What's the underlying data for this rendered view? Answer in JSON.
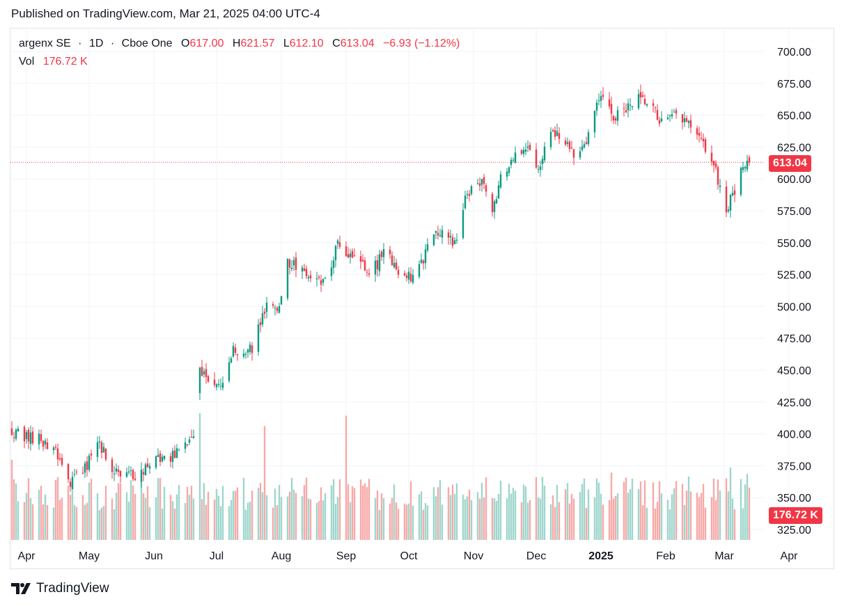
{
  "published": "Published on TradingView.com, Mar 21, 2025 04:00 UTC-4",
  "legend": {
    "symbol": "argenx SE",
    "interval": "1D",
    "exchange": "Cboe One",
    "o_label": "O",
    "o_value": "617.00",
    "h_label": "H",
    "h_value": "621.57",
    "l_label": "L",
    "l_value": "612.10",
    "c_label": "C",
    "c_value": "613.04",
    "change": "−6.93 (−1.12%)",
    "vol_label": "Vol",
    "vol_value": "176.72 K"
  },
  "price_tag": "613.04",
  "volume_tag": "176.72 K",
  "brand": "TradingView",
  "colors": {
    "up": "#089981",
    "down": "#f23645",
    "up_vol": "#9fd6cc",
    "down_vol": "#f7a9a7",
    "grid": "#f0f3fa",
    "text": "#131722"
  },
  "chart_data": {
    "type": "candlestick",
    "ylim": [
      320,
      710
    ],
    "y_ticks": [
      "700.00",
      "675.00",
      "650.00",
      "625.00",
      "600.00",
      "575.00",
      "550.00",
      "525.00",
      "500.00",
      "475.00",
      "450.00",
      "425.00",
      "400.00",
      "375.00",
      "350.00",
      "325.00"
    ],
    "y_tick_values": [
      700,
      675,
      650,
      625,
      600,
      575,
      550,
      525,
      500,
      475,
      450,
      425,
      400,
      375,
      350,
      325
    ],
    "x_ticks": [
      {
        "label": "Apr",
        "day": 7
      },
      {
        "label": "May",
        "day": 37
      },
      {
        "label": "Jun",
        "day": 68
      },
      {
        "label": "Jul",
        "day": 98
      },
      {
        "label": "Aug",
        "day": 129
      },
      {
        "label": "Sep",
        "day": 160
      },
      {
        "label": "Oct",
        "day": 190
      },
      {
        "label": "Nov",
        "day": 221
      },
      {
        "label": "Dec",
        "day": 251
      },
      {
        "label": "2025",
        "day": 282,
        "bold": true
      },
      {
        "label": "Feb",
        "day": 313
      },
      {
        "label": "Mar",
        "day": 341
      },
      {
        "label": "Apr",
        "day": 372
      }
    ],
    "last_close": 613.04,
    "anchors": [
      {
        "day": 0,
        "price": 403
      },
      {
        "day": 4,
        "price": 398
      },
      {
        "day": 12,
        "price": 396
      },
      {
        "day": 20,
        "price": 390
      },
      {
        "day": 28,
        "price": 363
      },
      {
        "day": 35,
        "price": 374
      },
      {
        "day": 42,
        "price": 392
      },
      {
        "day": 48,
        "price": 372
      },
      {
        "day": 55,
        "price": 366
      },
      {
        "day": 62,
        "price": 370
      },
      {
        "day": 70,
        "price": 380
      },
      {
        "day": 78,
        "price": 384
      },
      {
        "day": 88,
        "price": 397
      },
      {
        "day": 90,
        "price": 452
      },
      {
        "day": 96,
        "price": 436
      },
      {
        "day": 102,
        "price": 440
      },
      {
        "day": 106,
        "price": 464
      },
      {
        "day": 115,
        "price": 466
      },
      {
        "day": 122,
        "price": 504
      },
      {
        "day": 128,
        "price": 500
      },
      {
        "day": 132,
        "price": 536
      },
      {
        "day": 140,
        "price": 528
      },
      {
        "day": 146,
        "price": 522
      },
      {
        "day": 150,
        "price": 518
      },
      {
        "day": 156,
        "price": 548
      },
      {
        "day": 164,
        "price": 536
      },
      {
        "day": 172,
        "price": 526
      },
      {
        "day": 178,
        "price": 542
      },
      {
        "day": 186,
        "price": 528
      },
      {
        "day": 192,
        "price": 520
      },
      {
        "day": 198,
        "price": 542
      },
      {
        "day": 204,
        "price": 560
      },
      {
        "day": 212,
        "price": 550
      },
      {
        "day": 216,
        "price": 578
      },
      {
        "day": 220,
        "price": 596
      },
      {
        "day": 226,
        "price": 598
      },
      {
        "day": 230,
        "price": 570
      },
      {
        "day": 234,
        "price": 600
      },
      {
        "day": 240,
        "price": 614
      },
      {
        "day": 246,
        "price": 627
      },
      {
        "day": 252,
        "price": 610
      },
      {
        "day": 258,
        "price": 638
      },
      {
        "day": 264,
        "price": 628
      },
      {
        "day": 270,
        "price": 620
      },
      {
        "day": 275,
        "price": 632
      },
      {
        "day": 279,
        "price": 658
      },
      {
        "day": 284,
        "price": 666
      },
      {
        "day": 288,
        "price": 648
      },
      {
        "day": 294,
        "price": 654
      },
      {
        "day": 300,
        "price": 662
      },
      {
        "day": 306,
        "price": 656
      },
      {
        "day": 312,
        "price": 642
      },
      {
        "day": 318,
        "price": 650
      },
      {
        "day": 324,
        "price": 642
      },
      {
        "day": 330,
        "price": 628
      },
      {
        "day": 334,
        "price": 620
      },
      {
        "day": 338,
        "price": 600
      },
      {
        "day": 342,
        "price": 574
      },
      {
        "day": 346,
        "price": 592
      },
      {
        "day": 350,
        "price": 612
      },
      {
        "day": 353,
        "price": 617
      },
      {
        "day": 354,
        "price": 613
      }
    ],
    "volume_ylim": [
      0,
      1000
    ],
    "volume_spikes": [
      {
        "day": 0,
        "value": 620
      },
      {
        "day": 90,
        "value": 980
      },
      {
        "day": 121,
        "value": 880
      },
      {
        "day": 160,
        "value": 960
      },
      {
        "day": 221,
        "value": 820
      },
      {
        "day": 236,
        "value": 650
      },
      {
        "day": 287,
        "value": 520
      },
      {
        "day": 344,
        "value": 560
      },
      {
        "day": 352,
        "value": 510
      },
      {
        "day": 354,
        "value": 240
      }
    ],
    "volume_base": 230
  }
}
